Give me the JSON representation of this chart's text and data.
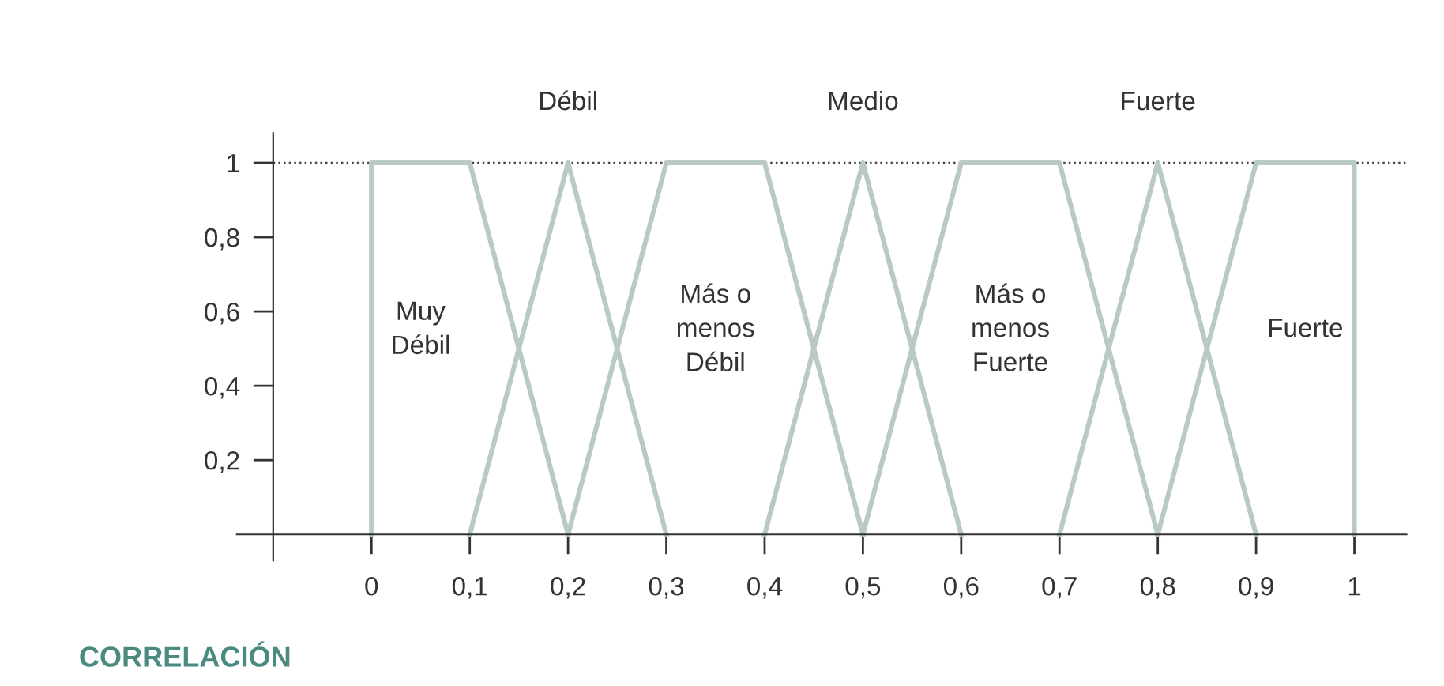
{
  "chart_data": {
    "type": "line",
    "xlabel": "CORRELACIÓN",
    "xlim": [
      -0.137,
      1.053
    ],
    "ylim": [
      -0.07,
      1.08
    ],
    "xticks": [
      0,
      {
        "value": 0.1,
        "label": "0,1"
      },
      {
        "value": 0.2,
        "label": "0,2"
      },
      {
        "value": 0.3,
        "label": "0,3"
      },
      {
        "value": 0.4,
        "label": "0,4"
      },
      {
        "value": 0.5,
        "label": "0,5"
      },
      {
        "value": 0.6,
        "label": "0,6"
      },
      {
        "value": 0.7,
        "label": "0,7"
      },
      {
        "value": 0.8,
        "label": "0,8"
      },
      {
        "value": 0.9,
        "label": "0,9"
      },
      1
    ],
    "yticks": [
      {
        "value": 0.2,
        "label": "0,2"
      },
      {
        "value": 0.4,
        "label": "0,4"
      },
      {
        "value": 0.6,
        "label": "0,6"
      },
      {
        "value": 0.8,
        "label": "0,8"
      },
      1
    ],
    "grid": false,
    "marker": "none",
    "line_style": "solid",
    "ref_lines": [
      {
        "axis": "y",
        "value": 1,
        "color": "#444444",
        "line_style": "dotted"
      }
    ],
    "series": [
      {
        "name": "Muy\nDébil",
        "color": "#b9c9c5",
        "x": [
          0,
          0,
          0.1,
          0.2
        ],
        "values": [
          0,
          1,
          1,
          0
        ]
      },
      {
        "name": "Débil",
        "color": "#b9c9c5",
        "x": [
          0.1,
          0.2,
          0.3
        ],
        "values": [
          0,
          1,
          0
        ]
      },
      {
        "name": "Más o\nmenos\nDébil",
        "color": "#b9c9c5",
        "x": [
          0.2,
          0.3,
          0.4,
          0.5
        ],
        "values": [
          0,
          1,
          1,
          0
        ]
      },
      {
        "name": "Medio",
        "color": "#b9c9c5",
        "x": [
          0.4,
          0.5,
          0.6
        ],
        "values": [
          0,
          1,
          0
        ]
      },
      {
        "name": "Más o\nmenos\nFuerte",
        "color": "#b9c9c5",
        "x": [
          0.5,
          0.6,
          0.7,
          0.8
        ],
        "values": [
          0,
          1,
          1,
          0
        ]
      },
      {
        "name": "Fuerte",
        "color": "#b9c9c5",
        "x": [
          0.7,
          0.8,
          0.9
        ],
        "values": [
          0,
          1,
          0
        ]
      },
      {
        "name": "Fuerte",
        "color": "#b9c9c5",
        "x": [
          0.8,
          0.9,
          1,
          1
        ],
        "values": [
          0,
          1,
          1,
          0
        ]
      }
    ]
  }
}
